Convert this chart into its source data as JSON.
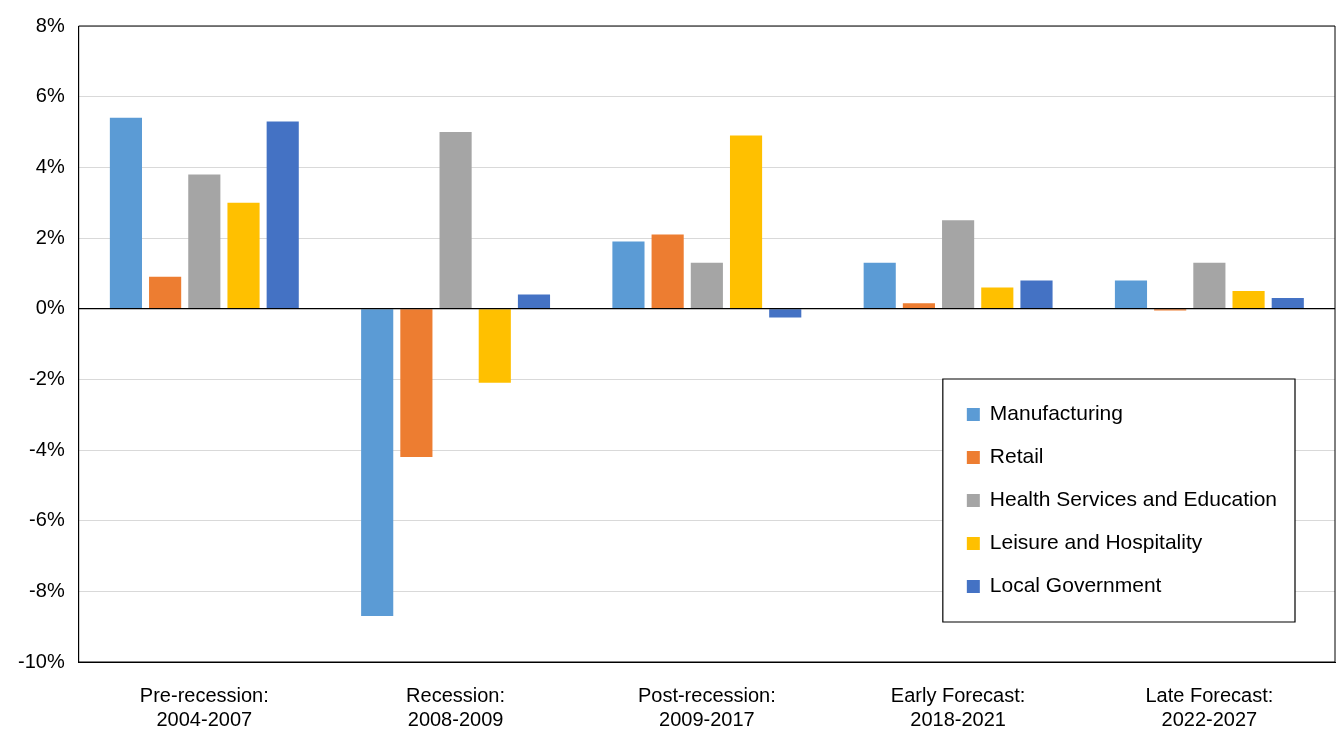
{
  "chart_data": {
    "type": "bar",
    "categories": [
      "Pre-recession: 2004-2007",
      "Recession: 2008-2009",
      "Post-recession: 2009-2017",
      "Early Forecast: 2018-2021",
      "Late Forecast: 2022-2027"
    ],
    "series": [
      {
        "name": "Manufacturing",
        "color": "#5b9bd5",
        "values": [
          5.4,
          -8.7,
          1.9,
          1.3,
          0.8
        ]
      },
      {
        "name": "Retail",
        "color": "#ed7d31",
        "values": [
          0.9,
          -4.2,
          2.1,
          0.15,
          -0.05
        ]
      },
      {
        "name": "Health Services and Education",
        "color": "#a5a5a5",
        "values": [
          3.8,
          5.0,
          1.3,
          2.5,
          1.3
        ]
      },
      {
        "name": "Leisure and Hospitality",
        "color": "#ffc000",
        "values": [
          3.0,
          -2.1,
          4.9,
          0.6,
          0.5
        ]
      },
      {
        "name": "Local Government",
        "color": "#4472c4",
        "values": [
          5.3,
          0.4,
          -0.25,
          0.8,
          0.3
        ]
      }
    ],
    "ylim": [
      -10,
      8
    ],
    "yticks": [
      {
        "value": -10,
        "label": "-10%"
      },
      {
        "value": -8,
        "label": "-8%"
      },
      {
        "value": -6,
        "label": "-6%"
      },
      {
        "value": -4,
        "label": "-4%"
      },
      {
        "value": -2,
        "label": "-2%"
      },
      {
        "value": 0,
        "label": "0%"
      },
      {
        "value": 2,
        "label": "2%"
      },
      {
        "value": 4,
        "label": "4%"
      },
      {
        "value": 6,
        "label": "6%"
      },
      {
        "value": 8,
        "label": "8%"
      }
    ],
    "grid": "y",
    "legend": "bottom right"
  }
}
